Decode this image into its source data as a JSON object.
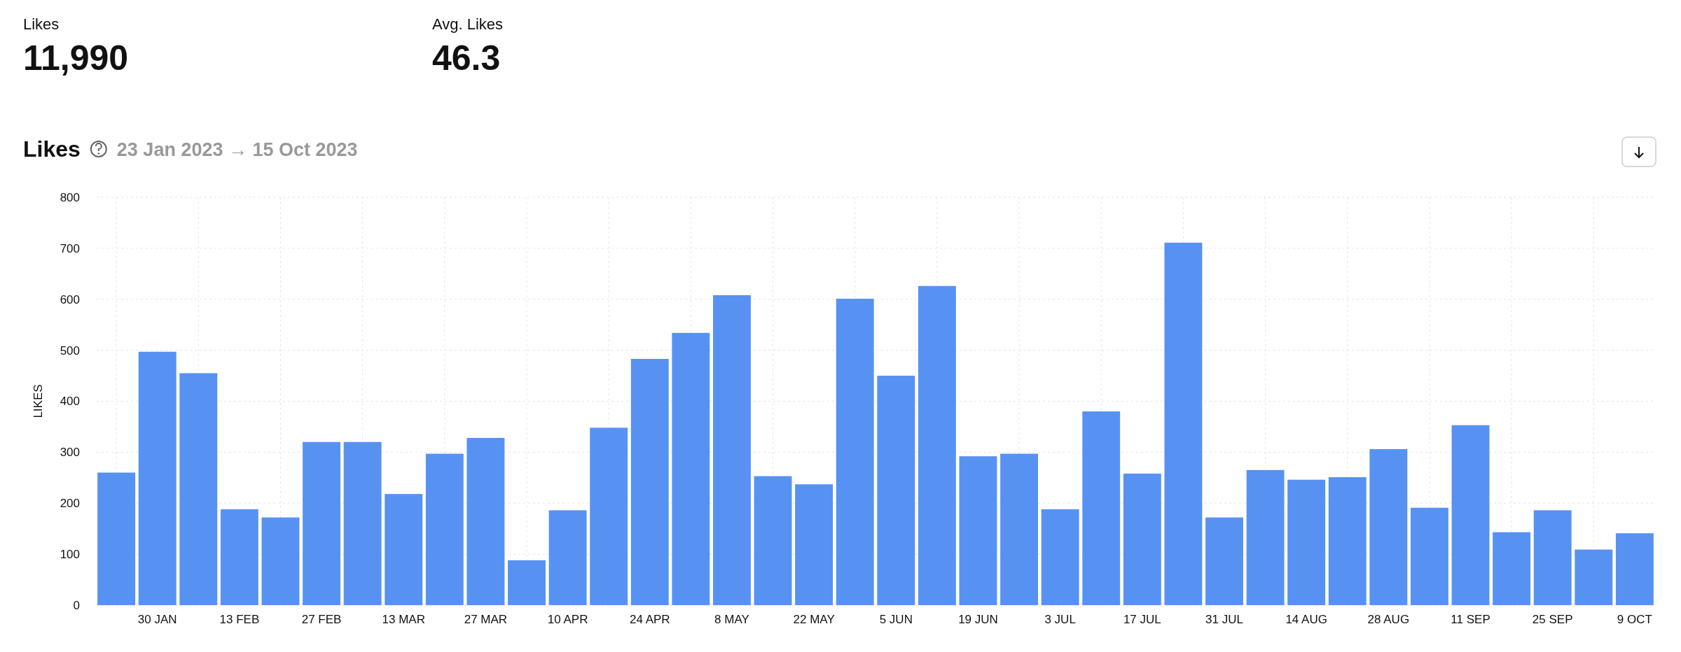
{
  "chart_data": {
    "type": "bar",
    "title": "Likes",
    "subtitle": "23 Jan 2023 → 15 Oct 2023",
    "ylabel": "LIKES",
    "annotations": [
      "Likes",
      "11,990",
      "Avg. Likes",
      "46.3"
    ],
    "categories": [
      null,
      "30 JAN",
      null,
      "13 FEB",
      null,
      "27 FEB",
      null,
      "13 MAR",
      null,
      "27 MAR",
      null,
      "10 APR",
      null,
      "24 APR",
      null,
      "8 MAY",
      null,
      "22 MAY",
      null,
      "5 JUN",
      null,
      "19 JUN",
      null,
      "3 JUL",
      null,
      "17 JUL",
      null,
      "31 JUL",
      null,
      "14 AUG",
      null,
      "28 AUG",
      null,
      "11 SEP",
      null,
      "25 SEP",
      null,
      "9 OCT"
    ],
    "values": [
      260,
      497,
      455,
      188,
      172,
      320,
      320,
      218,
      297,
      328,
      88,
      186,
      348,
      483,
      534,
      608,
      253,
      237,
      601,
      450,
      626,
      292,
      297,
      188,
      380,
      258,
      711,
      172,
      265,
      246,
      251,
      306,
      191,
      353,
      143,
      186,
      109,
      141
    ],
    "color": "#5792f3",
    "ylim": [
      0,
      800
    ],
    "yticks": [
      0,
      100,
      200,
      300,
      400,
      500,
      600,
      700,
      800
    ],
    "grid": true
  }
}
